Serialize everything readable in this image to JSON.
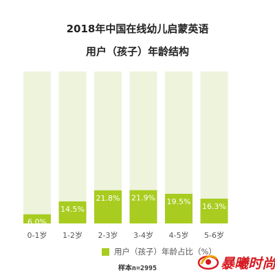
{
  "chart_data": {
    "type": "bar",
    "title": "2018年中国在线幼儿启蒙英语",
    "subtitle": "用户（孩子）年龄结构",
    "categories": [
      "0-1岁",
      "1-2岁",
      "2-3岁",
      "3-4岁",
      "4-5岁",
      "5-6岁"
    ],
    "series": [
      {
        "name": "用户（孩子）年龄占比（%）",
        "values": [
          6.0,
          14.5,
          21.8,
          21.9,
          19.5,
          16.3
        ]
      }
    ],
    "value_labels": [
      "6.0%",
      "14.5%",
      "21.8%",
      "21.9%",
      "19.5%",
      "16.3%"
    ],
    "ylim": [
      0,
      100
    ],
    "xlabel": "",
    "ylabel": "",
    "grid": false,
    "legend_position": "bottom",
    "colors": {
      "bar": "#a8cc1f",
      "track": "#eef3dc",
      "label_text": "#ffffff",
      "tick_text": "#555555"
    }
  },
  "footer": {
    "sample": "样本n=2995"
  },
  "logo": {
    "text": "暴曦时尚",
    "color": "#d71921"
  }
}
